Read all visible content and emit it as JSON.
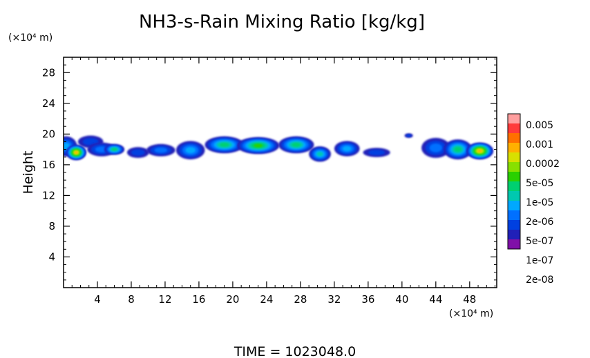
{
  "chart_data": {
    "type": "heatmap",
    "title": "NH3-s-Rain Mixing Ratio [kg/kg]",
    "xlabel": "",
    "ylabel": "Height",
    "x_unit": "(×10⁴ m)",
    "y_unit": "(×10⁴ m)",
    "xlim": [
      0,
      51.2
    ],
    "ylim": [
      0,
      30
    ],
    "x_ticks": [
      4,
      8,
      12,
      16,
      20,
      24,
      28,
      32,
      36,
      40,
      44,
      48
    ],
    "y_ticks": [
      4,
      8,
      12,
      16,
      20,
      24,
      28
    ],
    "colorbar": {
      "labels": [
        "0.005",
        "0.001",
        "0.0002",
        "5e-05",
        "1e-05",
        "2e-06",
        "5e-07",
        "1e-07",
        "2e-08"
      ],
      "colors": [
        "#ff9f9f",
        "#ff3a3a",
        "#ff7000",
        "#ffb000",
        "#d8e000",
        "#88e000",
        "#2ad000",
        "#00d070",
        "#00c8b0",
        "#00a8ff",
        "#0070ff",
        "#0040e0",
        "#2020b8",
        "#8010a8"
      ]
    },
    "cells": [
      {
        "x": 0.3,
        "y": 18.4,
        "level": 3,
        "w": 2.6,
        "h": 2.6
      },
      {
        "x": 1.5,
        "y": 17.6,
        "level": 9,
        "w": 2.4,
        "h": 2.0
      },
      {
        "x": 3.2,
        "y": 19.0,
        "level": 1,
        "w": 3.0,
        "h": 1.6
      },
      {
        "x": 4.5,
        "y": 18.0,
        "level": 2,
        "w": 3.4,
        "h": 1.8
      },
      {
        "x": 6.0,
        "y": 18.0,
        "level": 5,
        "w": 2.4,
        "h": 1.4
      },
      {
        "x": 8.8,
        "y": 17.6,
        "level": 1,
        "w": 2.6,
        "h": 1.4
      },
      {
        "x": 11.5,
        "y": 17.9,
        "level": 2,
        "w": 3.4,
        "h": 1.6
      },
      {
        "x": 15.0,
        "y": 17.9,
        "level": 3,
        "w": 3.4,
        "h": 2.4
      },
      {
        "x": 19.0,
        "y": 18.6,
        "level": 5,
        "w": 4.6,
        "h": 2.2
      },
      {
        "x": 23.0,
        "y": 18.5,
        "level": 6,
        "w": 5.0,
        "h": 2.2
      },
      {
        "x": 27.5,
        "y": 18.6,
        "level": 5,
        "w": 4.2,
        "h": 2.2
      },
      {
        "x": 30.3,
        "y": 17.4,
        "level": 4,
        "w": 2.6,
        "h": 2.0
      },
      {
        "x": 33.5,
        "y": 18.1,
        "level": 3,
        "w": 3.0,
        "h": 2.0
      },
      {
        "x": 37.0,
        "y": 17.6,
        "level": 1,
        "w": 3.2,
        "h": 1.2
      },
      {
        "x": 40.8,
        "y": 19.8,
        "level": 1,
        "w": 1.0,
        "h": 0.6
      },
      {
        "x": 44.0,
        "y": 18.2,
        "level": 2,
        "w": 3.4,
        "h": 2.6
      },
      {
        "x": 46.6,
        "y": 18.0,
        "level": 5,
        "w": 3.4,
        "h": 2.6
      },
      {
        "x": 49.2,
        "y": 17.8,
        "level": 9,
        "w": 3.2,
        "h": 2.2
      }
    ],
    "grid": false
  },
  "footer": {
    "time_label": "TIME = 1023048.0"
  }
}
